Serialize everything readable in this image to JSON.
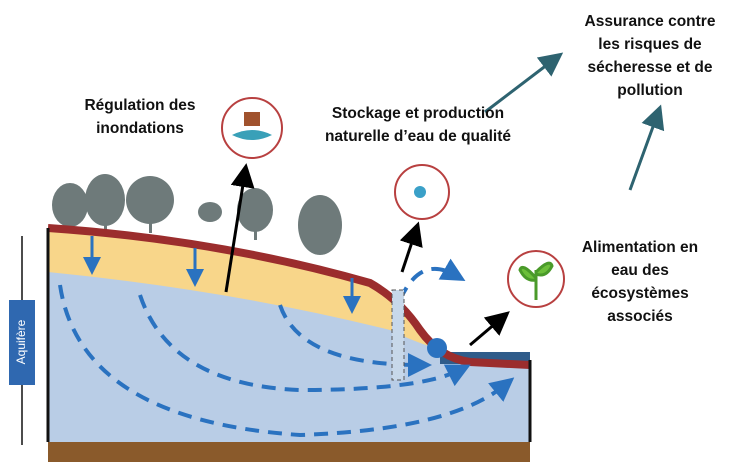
{
  "labels": {
    "assurance": [
      "Assurance contre",
      "les risques de",
      "sécheresse et de",
      "pollution"
    ],
    "regulation": [
      "Régulation des",
      "inondations"
    ],
    "stockage": [
      "Stockage et production",
      "naturelle d’eau de qualité"
    ],
    "alimentation": [
      "Alimentation en",
      "eau des",
      "écosystèmes",
      "associés"
    ],
    "aquifere": "Aquifère"
  }
}
